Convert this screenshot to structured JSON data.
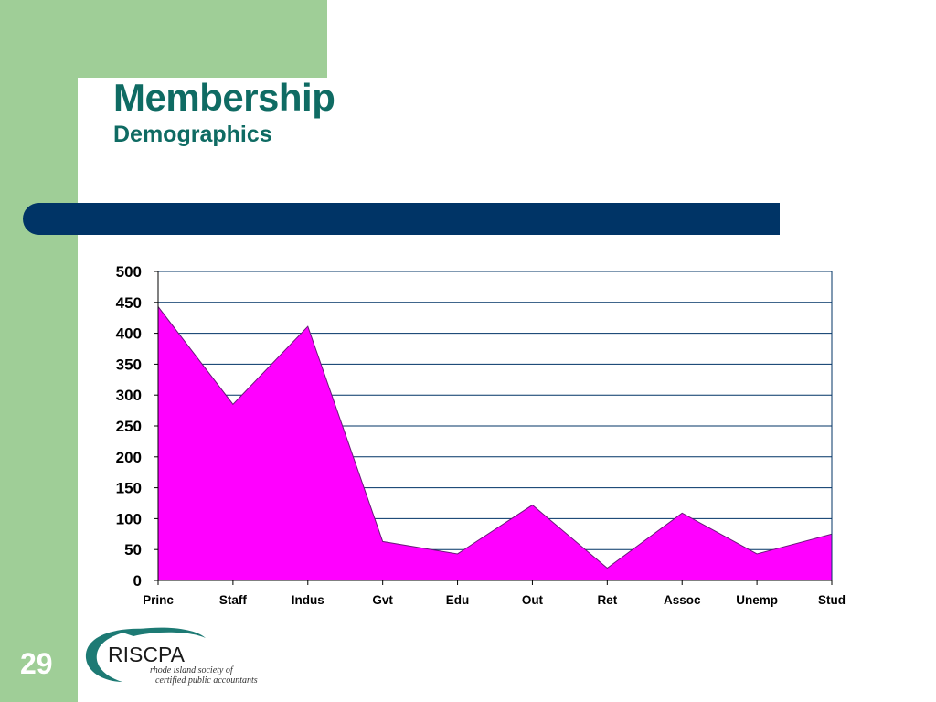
{
  "slide": {
    "title": "Membership",
    "subtitle": "Demographics",
    "number": "29"
  },
  "logo": {
    "name": "RISCPA",
    "tagline_line1": "rhode island society of",
    "tagline_line2": "certified public accountants"
  },
  "colors": {
    "band": "#9fce97",
    "title": "#0f6b63",
    "header_bar": "#003466",
    "area_fill": "#ff00ff",
    "area_stroke": "#6a1a7a"
  },
  "chart_data": {
    "type": "area",
    "title": "",
    "xlabel": "",
    "ylabel": "",
    "categories": [
      "Princ",
      "Staff",
      "Indus",
      "Gvt",
      "Edu",
      "Out",
      "Ret",
      "Assoc",
      "Unemp",
      "Stud"
    ],
    "values": [
      443,
      285,
      411,
      63,
      43,
      122,
      20,
      109,
      43,
      75
    ],
    "ylim": [
      0,
      500
    ],
    "yticks": [
      "0",
      "50",
      "100",
      "150",
      "200",
      "250",
      "300",
      "350",
      "400",
      "450",
      "500"
    ],
    "grid": true,
    "legend": "none"
  }
}
